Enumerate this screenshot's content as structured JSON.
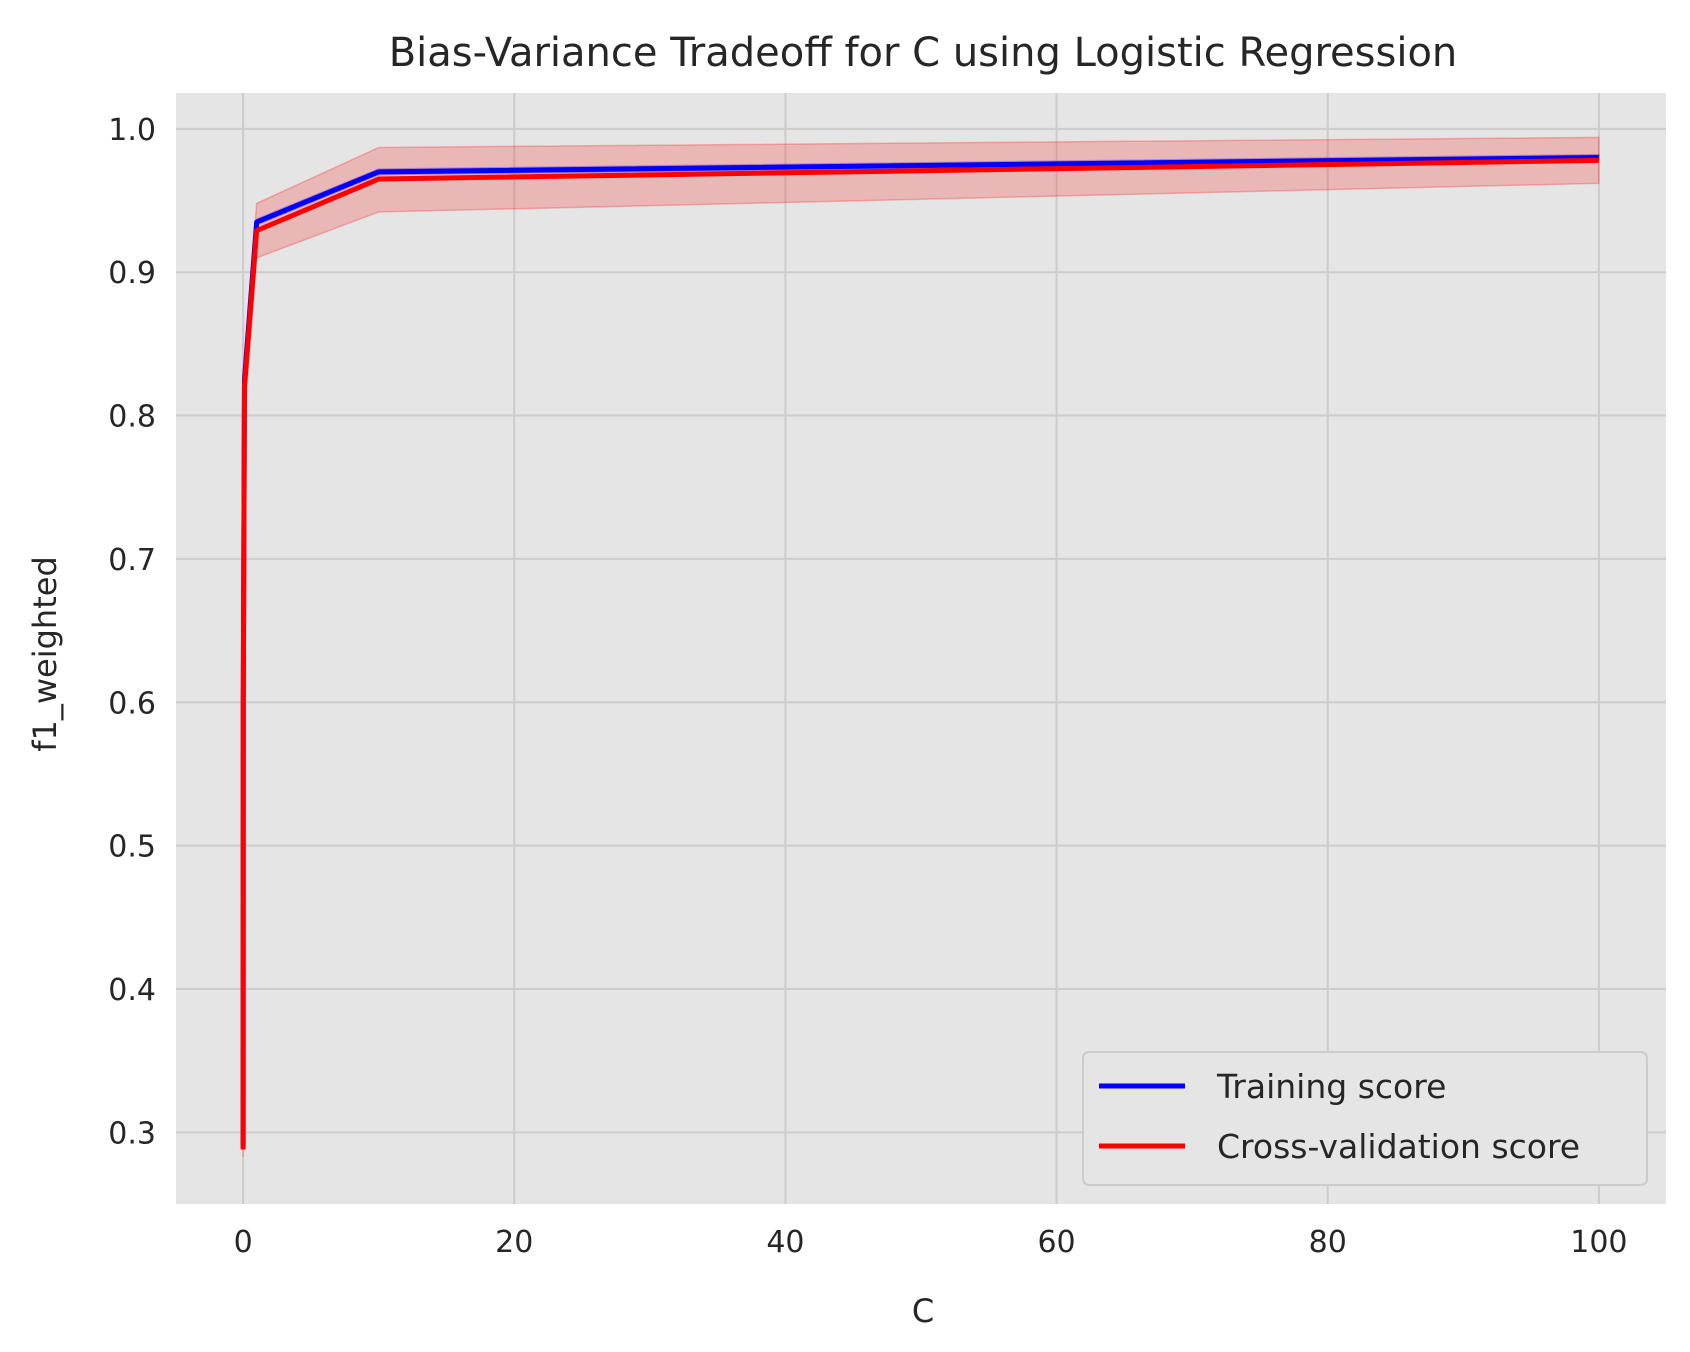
{
  "chart_data": {
    "type": "line",
    "title": "Bias-Variance Tradeoff for C using Logistic Regression",
    "xlabel": "C",
    "ylabel": "f1_weighted",
    "x": [
      0.001,
      0.01,
      0.1,
      1,
      10,
      100
    ],
    "xlim": [
      -4.95,
      104.95
    ],
    "ylim": [
      0.25,
      1.025
    ],
    "xticks": [
      0,
      20,
      40,
      60,
      80,
      100
    ],
    "xtick_labels": [
      "0",
      "20",
      "40",
      "60",
      "80",
      "100"
    ],
    "yticks": [
      0.3,
      0.4,
      0.5,
      0.6,
      0.7,
      0.8,
      0.9,
      1.0
    ],
    "ytick_labels": [
      "0.3",
      "0.4",
      "0.5",
      "0.6",
      "0.7",
      "0.8",
      "0.9",
      "1.0"
    ],
    "grid": true,
    "legend_position": "bottom-right",
    "series": [
      {
        "name": "Training score",
        "color": "#0000ff",
        "values": [
          0.29,
          0.6,
          0.825,
          0.935,
          0.97,
          0.98
        ],
        "band_lower": [
          0.288,
          0.598,
          0.823,
          0.933,
          0.968,
          0.978
        ],
        "band_upper": [
          0.292,
          0.602,
          0.827,
          0.937,
          0.972,
          0.982
        ],
        "band_color": "#0000ff"
      },
      {
        "name": "Cross-validation score",
        "color": "#ff0000",
        "values": [
          0.288,
          0.595,
          0.82,
          0.929,
          0.965,
          0.978
        ],
        "band_lower": [
          0.283,
          0.58,
          0.8,
          0.91,
          0.942,
          0.962
        ],
        "band_upper": [
          0.293,
          0.61,
          0.84,
          0.948,
          0.987,
          0.994
        ],
        "band_color": "#ff0000"
      }
    ]
  }
}
